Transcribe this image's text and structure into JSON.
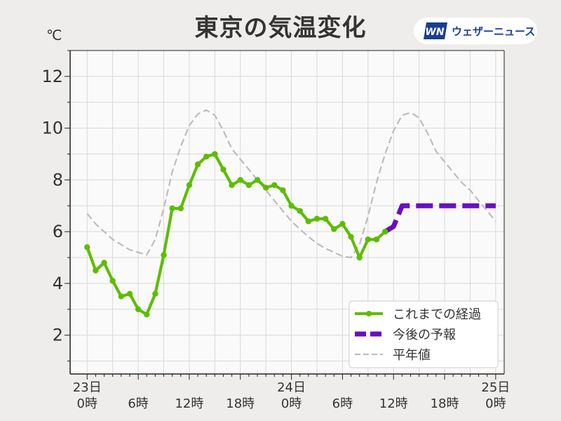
{
  "title": "東京の気温変化",
  "logo_text": "ウェザーニュース",
  "logo_mark_text": "WN",
  "unit": "℃",
  "colors": {
    "actual": "#5cbd00",
    "forecast": "#6a0dc4",
    "normal": "#bdbdbd",
    "plot_bg": "#fbfafa",
    "grid": "#d8d8d8",
    "logo": "#1a3e8f"
  },
  "chart_data": {
    "type": "line",
    "title": "東京の気温変化",
    "ylabel": "℃",
    "xlim": [
      -2,
      49
    ],
    "ylim": [
      0.5,
      13
    ],
    "yticks": [
      2,
      4,
      6,
      8,
      10,
      12
    ],
    "x_ticks": [
      {
        "x": 0,
        "top": "23日",
        "bottom": "0時"
      },
      {
        "x": 6,
        "top": "",
        "bottom": "6時"
      },
      {
        "x": 12,
        "top": "",
        "bottom": "12時"
      },
      {
        "x": 18,
        "top": "",
        "bottom": "18時"
      },
      {
        "x": 24,
        "top": "24日",
        "bottom": "0時"
      },
      {
        "x": 30,
        "top": "",
        "bottom": "6時"
      },
      {
        "x": 36,
        "top": "",
        "bottom": "12時"
      },
      {
        "x": 42,
        "top": "",
        "bottom": "18時"
      },
      {
        "x": 48,
        "top": "25日",
        "bottom": "0時"
      }
    ],
    "grid": true,
    "legend_position": "bottom-right",
    "series": [
      {
        "name": "これまでの経過",
        "style": "solid-markers",
        "x": [
          0,
          1,
          2,
          3,
          4,
          5,
          6,
          7,
          8,
          9,
          10,
          11,
          12,
          13,
          14,
          15,
          16,
          17,
          18,
          19,
          20,
          21,
          22,
          23,
          24,
          25,
          26,
          27,
          28,
          29,
          30,
          31,
          32,
          33,
          34,
          35
        ],
        "y": [
          5.4,
          4.5,
          4.8,
          4.1,
          3.5,
          3.6,
          3.0,
          2.8,
          3.6,
          5.1,
          6.9,
          6.9,
          7.8,
          8.6,
          8.9,
          9.0,
          8.4,
          7.8,
          8.0,
          7.8,
          8.0,
          7.7,
          7.8,
          7.6,
          7.0,
          6.8,
          6.4,
          6.5,
          6.5,
          6.1,
          6.3,
          5.8,
          5.0,
          5.7,
          5.7,
          6.0
        ]
      },
      {
        "name": "今後の予報",
        "style": "dashed-thick",
        "x": [
          35,
          36,
          37,
          38,
          39,
          40,
          41,
          42,
          43,
          44,
          45,
          46,
          47,
          48
        ],
        "y": [
          6.0,
          6.2,
          7.0,
          7.0,
          7.0,
          7.0,
          7.0,
          7.0,
          7.0,
          7.0,
          7.0,
          7.0,
          7.0,
          7.0
        ]
      },
      {
        "name": "平年値",
        "style": "dashed-thin",
        "x": [
          0,
          1,
          2,
          3,
          4,
          5,
          6,
          7,
          8,
          9,
          10,
          11,
          12,
          13,
          14,
          15,
          16,
          17,
          18,
          19,
          20,
          21,
          22,
          23,
          24,
          25,
          26,
          27,
          28,
          29,
          30,
          31,
          32,
          33,
          34,
          35,
          36,
          37,
          38,
          39,
          40,
          41,
          42,
          43,
          44,
          45,
          46,
          47,
          48
        ],
        "y": [
          6.7,
          6.3,
          6.0,
          5.7,
          5.5,
          5.3,
          5.2,
          5.1,
          5.7,
          6.9,
          8.3,
          9.3,
          10.1,
          10.55,
          10.7,
          10.5,
          9.9,
          9.2,
          8.8,
          8.4,
          8.0,
          7.6,
          7.2,
          6.8,
          6.4,
          6.1,
          5.8,
          5.55,
          5.35,
          5.2,
          5.05,
          5.0,
          5.5,
          6.6,
          7.9,
          9.0,
          9.9,
          10.5,
          10.6,
          10.4,
          9.8,
          9.1,
          8.7,
          8.3,
          7.9,
          7.6,
          7.2,
          6.8,
          6.4
        ]
      }
    ]
  }
}
